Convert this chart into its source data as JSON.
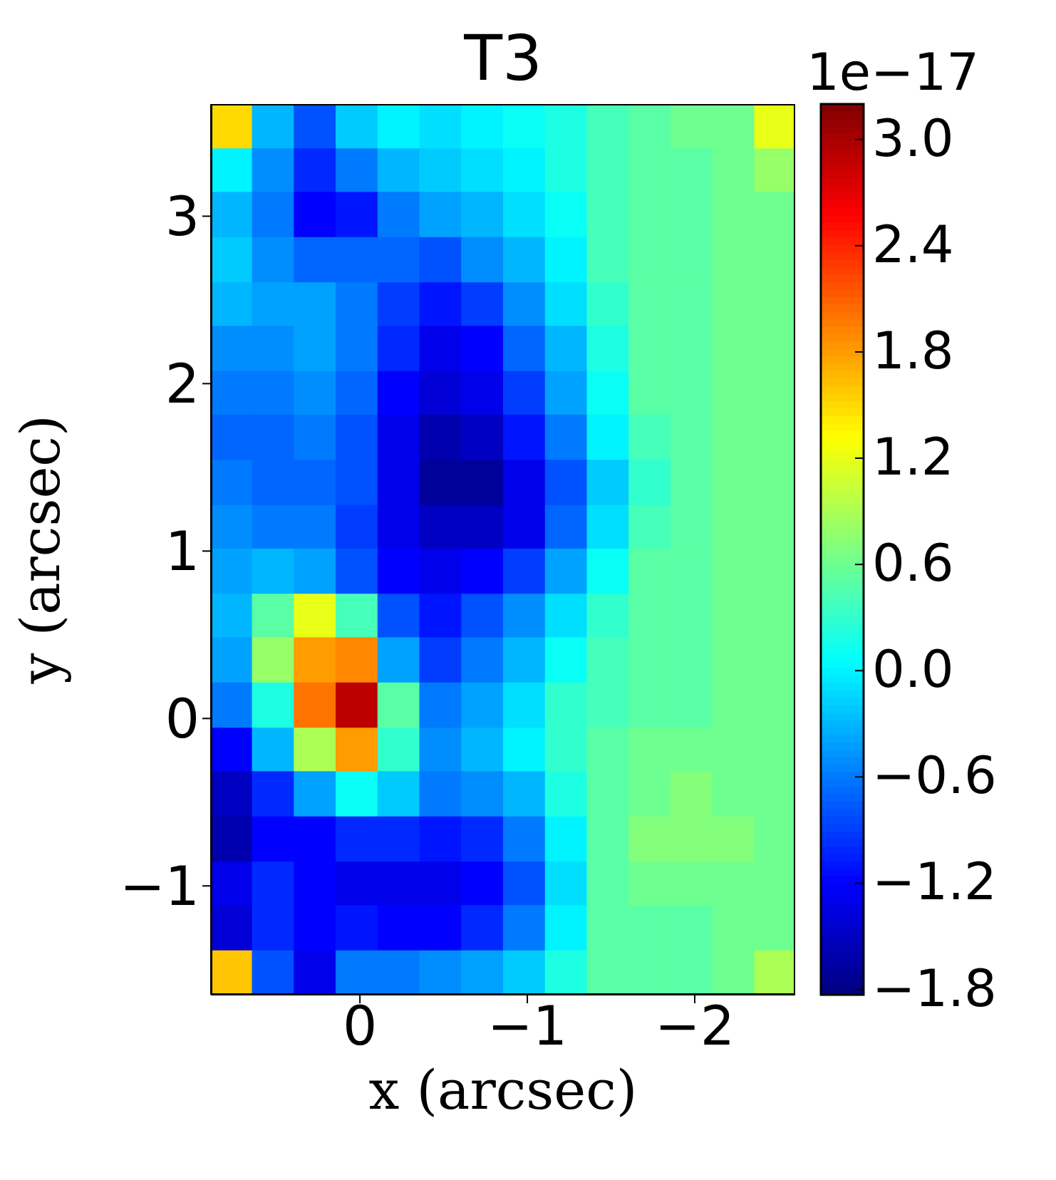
{
  "chart_data": {
    "type": "heatmap",
    "title": "T3",
    "xlabel": "x (arcsec)",
    "ylabel": "y (arcsec)",
    "clabel": "1e−17",
    "x": [
      0.77,
      0.52,
      0.27,
      0.02,
      -0.23,
      -0.48,
      -0.73,
      -0.98,
      -1.23,
      -1.48,
      -1.73,
      -1.98,
      -2.23,
      -2.48
    ],
    "y": [
      3.54,
      3.27,
      3.01,
      2.74,
      2.47,
      2.21,
      1.94,
      1.68,
      1.41,
      1.14,
      0.88,
      0.61,
      0.35,
      0.08,
      -0.19,
      -0.45,
      -0.72,
      -0.99,
      -1.25,
      -1.52
    ],
    "xlim": [
      0.89,
      -2.6
    ],
    "xticks": [
      0,
      -1,
      -2
    ],
    "ylim": [
      -1.65,
      3.67
    ],
    "yticks": [
      -1,
      0,
      1,
      2,
      3
    ],
    "clim": [
      -1.83,
      3.2
    ],
    "cticks": [
      {
        "value": -1.8,
        "label": "−1.8"
      },
      {
        "value": -1.2,
        "label": "−1.2"
      },
      {
        "value": -0.6,
        "label": "−0.6"
      },
      {
        "value": 0,
        "label": "0.0"
      },
      {
        "value": 0.6,
        "label": "0.6"
      },
      {
        "value": 1.2,
        "label": "1.2"
      },
      {
        "value": 1.8,
        "label": "1.8"
      },
      {
        "value": 2.4,
        "label": "2.4"
      },
      {
        "value": 3,
        "label": "3.0"
      }
    ],
    "cells": [
      [
        1.5,
        -0.3,
        -0.8,
        -0.2,
        0,
        -0.1,
        0,
        0.1,
        0.2,
        0.4,
        0.5,
        0.6,
        0.6,
        1.2
      ],
      [
        0,
        -0.5,
        -1.0,
        -0.6,
        -0.3,
        -0.2,
        -0.1,
        0,
        0.2,
        0.4,
        0.5,
        0.5,
        0.6,
        0.8
      ],
      [
        -0.3,
        -0.6,
        -1.2,
        -1.1,
        -0.6,
        -0.4,
        -0.3,
        -0.1,
        0.1,
        0.4,
        0.5,
        0.5,
        0.6,
        0.6
      ],
      [
        -0.2,
        -0.5,
        -0.7,
        -0.7,
        -0.7,
        -0.8,
        -0.5,
        -0.3,
        0,
        0.4,
        0.5,
        0.5,
        0.6,
        0.6
      ],
      [
        -0.3,
        -0.4,
        -0.4,
        -0.6,
        -0.9,
        -1.1,
        -0.9,
        -0.5,
        -0.1,
        0.3,
        0.5,
        0.5,
        0.6,
        0.6
      ],
      [
        -0.5,
        -0.5,
        -0.4,
        -0.6,
        -1.0,
        -1.3,
        -1.2,
        -0.7,
        -0.3,
        0.2,
        0.5,
        0.5,
        0.6,
        0.6
      ],
      [
        -0.6,
        -0.6,
        -0.5,
        -0.7,
        -1.2,
        -1.4,
        -1.3,
        -0.9,
        -0.4,
        0.1,
        0.5,
        0.5,
        0.6,
        0.6
      ],
      [
        -0.7,
        -0.7,
        -0.6,
        -0.8,
        -1.3,
        -1.6,
        -1.5,
        -1.1,
        -0.6,
        0,
        0.4,
        0.5,
        0.6,
        0.6
      ],
      [
        -0.6,
        -0.7,
        -0.7,
        -0.8,
        -1.3,
        -1.7,
        -1.7,
        -1.3,
        -0.8,
        -0.2,
        0.3,
        0.5,
        0.6,
        0.6
      ],
      [
        -0.5,
        -0.6,
        -0.6,
        -0.9,
        -1.3,
        -1.5,
        -1.5,
        -1.3,
        -0.7,
        -0.1,
        0.4,
        0.5,
        0.6,
        0.6
      ],
      [
        -0.4,
        -0.3,
        -0.4,
        -0.8,
        -1.2,
        -1.3,
        -1.2,
        -0.9,
        -0.4,
        0.1,
        0.5,
        0.5,
        0.6,
        0.6
      ],
      [
        -0.3,
        0.5,
        1.2,
        0.4,
        -0.8,
        -1.1,
        -0.8,
        -0.5,
        -0.1,
        0.3,
        0.5,
        0.5,
        0.6,
        0.6
      ],
      [
        -0.4,
        0.8,
        1.8,
        1.9,
        -0.4,
        -0.9,
        -0.6,
        -0.3,
        0.1,
        0.4,
        0.5,
        0.5,
        0.6,
        0.6
      ],
      [
        -0.6,
        0.2,
        2.0,
        2.9,
        0.5,
        -0.6,
        -0.4,
        -0.1,
        0.3,
        0.4,
        0.5,
        0.5,
        0.6,
        0.6
      ],
      [
        -1.2,
        -0.3,
        0.9,
        1.8,
        0.3,
        -0.5,
        -0.3,
        0,
        0.3,
        0.5,
        0.6,
        0.6,
        0.6,
        0.6
      ],
      [
        -1.5,
        -1.0,
        -0.4,
        0.1,
        -0.2,
        -0.6,
        -0.5,
        -0.3,
        0.2,
        0.5,
        0.6,
        0.7,
        0.6,
        0.6
      ],
      [
        -1.6,
        -1.2,
        -1.2,
        -1.0,
        -1.0,
        -1.1,
        -1.0,
        -0.6,
        0,
        0.5,
        0.7,
        0.7,
        0.7,
        0.6
      ],
      [
        -1.3,
        -1.0,
        -1.2,
        -1.3,
        -1.3,
        -1.3,
        -1.2,
        -0.8,
        -0.1,
        0.5,
        0.6,
        0.6,
        0.6,
        0.6
      ],
      [
        -1.4,
        -1.0,
        -1.2,
        -1.1,
        -1.2,
        -1.2,
        -1.0,
        -0.6,
        0,
        0.5,
        0.5,
        0.5,
        0.6,
        0.6
      ],
      [
        1.6,
        -0.8,
        -1.3,
        -0.6,
        -0.6,
        -0.5,
        -0.4,
        -0.2,
        0.2,
        0.5,
        0.5,
        0.5,
        0.6,
        0.9
      ]
    ]
  }
}
